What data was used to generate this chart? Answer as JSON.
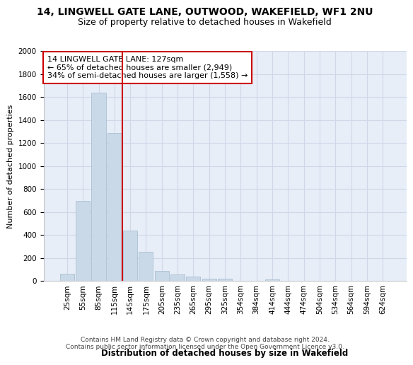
{
  "title_line1": "14, LINGWELL GATE LANE, OUTWOOD, WAKEFIELD, WF1 2NU",
  "title_line2": "Size of property relative to detached houses in Wakefield",
  "xlabel": "Distribution of detached houses by size in Wakefield",
  "ylabel": "Number of detached properties",
  "categories": [
    "25sqm",
    "55sqm",
    "85sqm",
    "115sqm",
    "145sqm",
    "175sqm",
    "205sqm",
    "235sqm",
    "265sqm",
    "295sqm",
    "325sqm",
    "354sqm",
    "384sqm",
    "414sqm",
    "444sqm",
    "474sqm",
    "504sqm",
    "534sqm",
    "564sqm",
    "594sqm",
    "624sqm"
  ],
  "values": [
    65,
    700,
    1640,
    1290,
    440,
    255,
    90,
    55,
    40,
    22,
    18,
    0,
    0,
    15,
    0,
    0,
    0,
    0,
    0,
    0,
    0
  ],
  "bar_color": "#c9d9e8",
  "bar_edge_color": "#a0b8cc",
  "marker_line_color": "#cc0000",
  "annotation_text": "14 LINGWELL GATE LANE: 127sqm\n← 65% of detached houses are smaller (2,949)\n34% of semi-detached houses are larger (1,558) →",
  "annotation_box_color": "#ffffff",
  "annotation_box_edge_color": "#cc0000",
  "ylim": [
    0,
    2000
  ],
  "yticks": [
    0,
    200,
    400,
    600,
    800,
    1000,
    1200,
    1400,
    1600,
    1800,
    2000
  ],
  "grid_color": "#d0d8e8",
  "background_color": "#e8eef8",
  "footer_line1": "Contains HM Land Registry data © Crown copyright and database right 2024.",
  "footer_line2": "Contains public sector information licensed under the Open Government Licence v3.0.",
  "title_fontsize": 10,
  "subtitle_fontsize": 9,
  "axis_label_fontsize": 8,
  "tick_fontsize": 7.5,
  "annotation_fontsize": 8,
  "footer_fontsize": 6.5
}
